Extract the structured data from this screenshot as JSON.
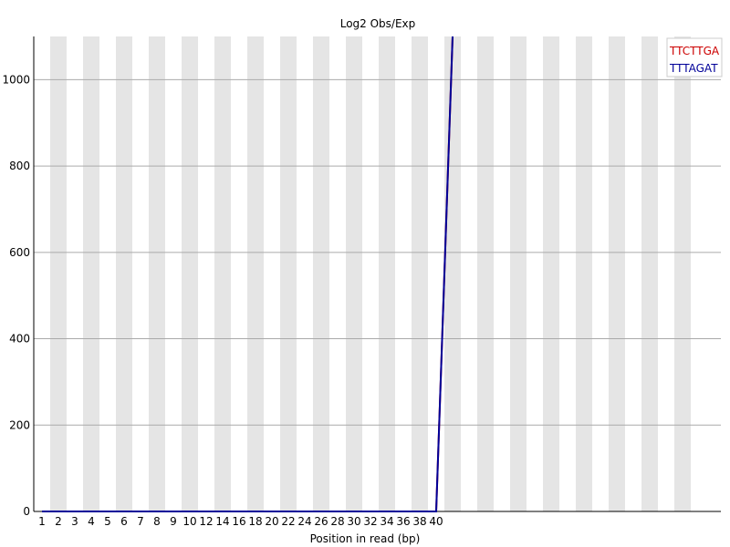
{
  "chart_data": {
    "type": "line",
    "title": "Log2 Obs/Exp",
    "xlabel": "Position in read (bp)",
    "ylabel": "",
    "x_tick_labels": [
      "1",
      "2",
      "3",
      "4",
      "5",
      "6",
      "7",
      "8",
      "9",
      "10",
      "12",
      "14",
      "16",
      "18",
      "20",
      "22",
      "24",
      "26",
      "28",
      "30",
      "32",
      "34",
      "36",
      "38",
      "40"
    ],
    "y_ticks": [
      0,
      200,
      400,
      600,
      800,
      1000
    ],
    "ylim": [
      0,
      1100
    ],
    "x_categories": [
      "1",
      "2",
      "3",
      "4",
      "5",
      "6",
      "7",
      "8",
      "9",
      "10",
      "12",
      "14",
      "16",
      "18",
      "20",
      "22",
      "24",
      "26",
      "28",
      "30",
      "32",
      "34",
      "36",
      "38",
      "40",
      "41"
    ],
    "grid": true,
    "legend_position": "top-right",
    "series": [
      {
        "name": "TTCTTGA",
        "color": "#cc0000",
        "values": [
          0,
          0,
          0,
          0,
          0,
          0,
          0,
          0,
          0,
          0,
          0,
          0,
          0,
          0,
          0,
          0,
          0,
          0,
          0,
          0,
          0,
          0,
          0,
          0,
          0,
          1100
        ]
      },
      {
        "name": "TTTAGAT",
        "color": "#000099",
        "values": [
          0,
          0,
          0,
          0,
          0,
          0,
          0,
          0,
          0,
          0,
          0,
          0,
          0,
          0,
          0,
          0,
          0,
          0,
          0,
          0,
          0,
          0,
          0,
          0,
          0,
          1100
        ]
      }
    ]
  }
}
